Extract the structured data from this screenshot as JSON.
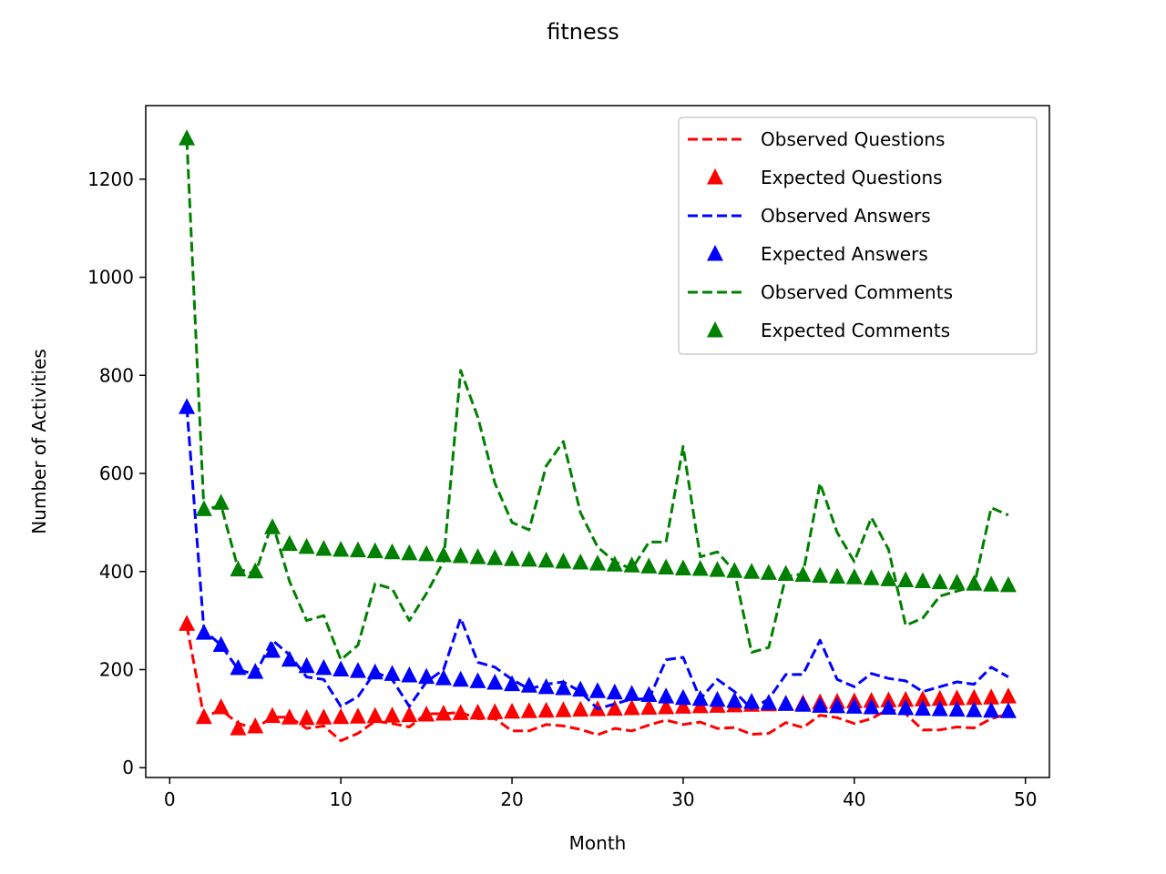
{
  "chart_data": {
    "type": "line",
    "title": "fitness",
    "xlabel": "Month",
    "ylabel": "Number of Activities",
    "xlim": [
      -1.4,
      51.4
    ],
    "ylim": [
      -20,
      1350
    ],
    "xticks": [
      0,
      10,
      20,
      30,
      40,
      50
    ],
    "yticks": [
      0,
      200,
      400,
      600,
      800,
      1000,
      1200
    ],
    "grid": false,
    "legend_position": "top-right",
    "x": [
      1,
      2,
      3,
      4,
      5,
      6,
      7,
      8,
      9,
      10,
      11,
      12,
      13,
      14,
      15,
      16,
      17,
      18,
      19,
      20,
      21,
      22,
      23,
      24,
      25,
      26,
      27,
      28,
      29,
      30,
      31,
      32,
      33,
      34,
      35,
      36,
      37,
      38,
      39,
      40,
      41,
      42,
      43,
      44,
      45,
      46,
      47,
      48,
      49
    ],
    "series": [
      {
        "name": "Observed Questions",
        "style": "dashed",
        "color": "#ff0000",
        "values": [
          290,
          103,
          118,
          90,
          80,
          103,
          103,
          80,
          85,
          55,
          70,
          95,
          90,
          83,
          110,
          110,
          113,
          100,
          100,
          75,
          75,
          88,
          85,
          78,
          67,
          80,
          75,
          87,
          97,
          88,
          93,
          80,
          82,
          68,
          70,
          92,
          82,
          107,
          102,
          90,
          100,
          120,
          110,
          77,
          77,
          83,
          81,
          100,
          110
        ]
      },
      {
        "name": "Expected Questions",
        "style": "triangle",
        "color": "#ff0000",
        "values": [
          293,
          103,
          123,
          80,
          84,
          105,
          102,
          101,
          102,
          103,
          104,
          105,
          106,
          107,
          108,
          110,
          111,
          112,
          113,
          114,
          115,
          116,
          117,
          118,
          119,
          120,
          121,
          122,
          123,
          124,
          125,
          126,
          127,
          128,
          129,
          130,
          131,
          133,
          134,
          135,
          136,
          137,
          138,
          139,
          140,
          141,
          142,
          143,
          145
        ]
      },
      {
        "name": "Observed Answers",
        "style": "dashed",
        "color": "#0000ff",
        "values": [
          735,
          280,
          250,
          200,
          190,
          260,
          230,
          185,
          180,
          125,
          145,
          195,
          180,
          125,
          175,
          200,
          305,
          215,
          205,
          180,
          160,
          170,
          175,
          155,
          120,
          130,
          140,
          140,
          220,
          225,
          140,
          180,
          155,
          120,
          140,
          190,
          190,
          260,
          180,
          165,
          192,
          182,
          177,
          155,
          165,
          175,
          170,
          205,
          185
        ]
      },
      {
        "name": "Expected Answers",
        "style": "triangle",
        "color": "#0000ff",
        "values": [
          735,
          275,
          250,
          203,
          195,
          238,
          220,
          207,
          203,
          200,
          197,
          194,
          191,
          188,
          185,
          182,
          179,
          176,
          173,
          170,
          167,
          164,
          162,
          159,
          156,
          153,
          150,
          148,
          145,
          142,
          140,
          138,
          136,
          134,
          132,
          130,
          128,
          126,
          125,
          124,
          123,
          122,
          121,
          120,
          119,
          118,
          117,
          116,
          115
        ]
      },
      {
        "name": "Observed Comments",
        "style": "dashed",
        "color": "#008000",
        "values": [
          1280,
          525,
          535,
          405,
          395,
          500,
          380,
          300,
          310,
          220,
          250,
          375,
          365,
          300,
          355,
          420,
          810,
          715,
          580,
          500,
          485,
          615,
          665,
          520,
          450,
          420,
          405,
          460,
          460,
          655,
          430,
          440,
          400,
          235,
          245,
          390,
          395,
          580,
          480,
          420,
          510,
          445,
          290,
          305,
          350,
          360,
          370,
          530,
          515
        ]
      },
      {
        "name": "Expected Comments",
        "style": "triangle",
        "color": "#008000",
        "values": [
          1283,
          527,
          540,
          404,
          400,
          490,
          456,
          450,
          446,
          444,
          443,
          441,
          439,
          437,
          435,
          433,
          431,
          429,
          427,
          425,
          424,
          422,
          420,
          418,
          416,
          414,
          412,
          410,
          408,
          406,
          405,
          403,
          401,
          399,
          397,
          395,
          393,
          391,
          389,
          388,
          386,
          384,
          382,
          380,
          378,
          377,
          375,
          373,
          372
        ]
      }
    ]
  }
}
